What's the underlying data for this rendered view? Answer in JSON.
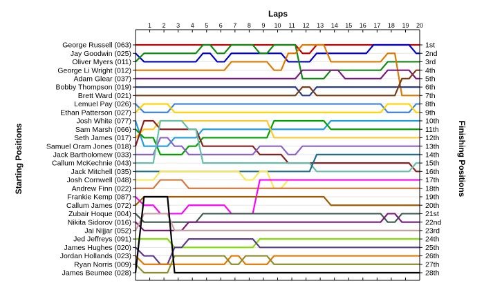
{
  "chart_data": {
    "type": "line",
    "title": "Laps",
    "left_axis_label": "Starting Positions",
    "right_axis_label": "Finishing Positions",
    "x": [
      1,
      2,
      3,
      4,
      5,
      6,
      7,
      8,
      9,
      10,
      11,
      12,
      13,
      14,
      15,
      16,
      17,
      18,
      19,
      20
    ],
    "x_ticks": [
      "1",
      "2",
      "3",
      "4",
      "5",
      "6",
      "7",
      "8",
      "9",
      "10",
      "11",
      "12",
      "13",
      "14",
      "15",
      "16",
      "17",
      "18",
      "19",
      "20"
    ],
    "starting_order": [
      "George Russell (063)",
      "Jay Goodwin (025)",
      "Oliver Myers (011)",
      "George Li Wright (012)",
      "Adam Glear (037)",
      "Bobby Thompson (019)",
      "Brett Ward (021)",
      "Lemuel Pay (026)",
      "Ethan Patterson (027)",
      "Josh White (077)",
      "Sam Marsh (066)",
      "Seth James (017)",
      "Samuel Oram Jones (018)",
      "Jack Bartholomew (033)",
      "Callum McKechnie (043)",
      "Jack Mitchell (035)",
      "Josh Cornwell (048)",
      "Andrew Finn (022)",
      "Frankie Kemp (087)",
      "Callum James (072)",
      "Zubair Hoque (004)",
      "Nikita Sidorov (016)",
      "Jai Nijjar (052)",
      "Jed Jeffreys (091)",
      "James Hughes (020)",
      "Jordan Hollands (023)",
      "Ryan Norris (009)",
      "James Beumee (028)"
    ],
    "finishing_positions": [
      "1st",
      "2nd",
      "3rd",
      "4th",
      "5th",
      "6th",
      "7th",
      "8th",
      "9th",
      "10th",
      "11th",
      "12th",
      "13th",
      "14th",
      "15th",
      "16th",
      "17th",
      "18th",
      "19th",
      "20th",
      "21st",
      "22nd",
      "23rd",
      "24th",
      "25th",
      "26th",
      "27th",
      "28th"
    ],
    "y_range": [
      1,
      28
    ],
    "series": [
      {
        "color": "#c00000",
        "positions": [
          1,
          1,
          1,
          1,
          1,
          1,
          1,
          1,
          1,
          1,
          1,
          1,
          2,
          1,
          1,
          1,
          1,
          1,
          1,
          1,
          1
        ]
      },
      {
        "color": "#0000c8",
        "positions": [
          2,
          3,
          3,
          3,
          3,
          2,
          3,
          2,
          2,
          2,
          2,
          3,
          3,
          2,
          2,
          2,
          2,
          1,
          1,
          1,
          2
        ]
      },
      {
        "color": "#108a10",
        "positions": [
          3,
          2,
          2,
          2,
          2,
          1,
          2,
          1,
          1,
          2,
          1,
          1,
          5,
          5,
          4,
          4,
          4,
          4,
          3,
          3,
          3
        ]
      },
      {
        "color": "#e07800",
        "positions": [
          4,
          4,
          4,
          4,
          4,
          4,
          4,
          3,
          3,
          3,
          4,
          2,
          1,
          1,
          3,
          3,
          3,
          3,
          2,
          7,
          7
        ]
      },
      {
        "color": "#7a1a7a",
        "positions": [
          5,
          5,
          5,
          5,
          5,
          5,
          5,
          5,
          5,
          5,
          5,
          5,
          4,
          4,
          4,
          5,
          5,
          5,
          4,
          4,
          5
        ]
      },
      {
        "color": "#283c8c",
        "positions": [
          6,
          6,
          6,
          6,
          6,
          6,
          6,
          6,
          6,
          6,
          6,
          6,
          7,
          6,
          6,
          6,
          6,
          6,
          6,
          6,
          6
        ]
      },
      {
        "color": "#7a3c14",
        "positions": [
          7,
          7,
          7,
          7,
          7,
          7,
          7,
          7,
          7,
          7,
          7,
          7,
          6,
          7,
          7,
          7,
          7,
          7,
          7,
          5,
          4
        ]
      },
      {
        "color": "#3c82d8",
        "positions": [
          8,
          9,
          9,
          8,
          8,
          8,
          8,
          8,
          8,
          8,
          8,
          8,
          8,
          8,
          8,
          8,
          8,
          8,
          9,
          9,
          8
        ]
      },
      {
        "color": "#ffd200",
        "positions": [
          9,
          8,
          8,
          9,
          9,
          9,
          9,
          9,
          9,
          9,
          9,
          9,
          9,
          9,
          9,
          9,
          9,
          9,
          8,
          8,
          9
        ]
      },
      {
        "color": "#1e9ee0",
        "positions": [
          10,
          13,
          13,
          12,
          12,
          11,
          11,
          11,
          11,
          11,
          11,
          11,
          11,
          11,
          10,
          10,
          10,
          10,
          10,
          10,
          10
        ]
      },
      {
        "color": "#00a000",
        "positions": [
          11,
          12,
          14,
          14,
          13,
          12,
          12,
          12,
          12,
          12,
          10,
          10,
          10,
          10,
          11,
          11,
          11,
          11,
          11,
          11,
          11
        ]
      },
      {
        "color": "#ffc828",
        "positions": [
          12,
          11,
          10,
          10,
          10,
          10,
          10,
          10,
          10,
          10,
          12,
          12,
          12,
          12,
          12,
          12,
          12,
          12,
          12,
          12,
          12
        ]
      },
      {
        "color": "#8c1e1e",
        "positions": [
          13,
          10,
          11,
          11,
          11,
          13,
          13,
          13,
          13,
          14,
          14,
          15,
          15,
          15,
          15,
          15,
          15,
          15,
          15,
          15,
          16
        ]
      },
      {
        "color": "#8c64c8",
        "positions": [
          14,
          14,
          12,
          13,
          14,
          14,
          14,
          14,
          14,
          13,
          13,
          14,
          13,
          13,
          13,
          13,
          13,
          13,
          13,
          13,
          13
        ]
      },
      {
        "color": "#64beaa",
        "positions": [
          15,
          15,
          10,
          10,
          11,
          15,
          15,
          15,
          15,
          15,
          15,
          15,
          15,
          16,
          16,
          16,
          16,
          16,
          16,
          16,
          15
        ]
      },
      {
        "color": "#1e6e8c",
        "positions": [
          16,
          16,
          16,
          16,
          16,
          16,
          16,
          16,
          16,
          16,
          16,
          16,
          16,
          14,
          14,
          14,
          14,
          14,
          14,
          14,
          14
        ]
      },
      {
        "color": "#ffe650",
        "positions": [
          17,
          17,
          16,
          16,
          16,
          16,
          16,
          16,
          17,
          16,
          18,
          17,
          17,
          17,
          17,
          17,
          17,
          17,
          17,
          17,
          17
        ]
      },
      {
        "color": "#d2783c",
        "positions": [
          18,
          18,
          17,
          17,
          18,
          18,
          18,
          18,
          18,
          18,
          18,
          18,
          18,
          18,
          18,
          18,
          18,
          18,
          18,
          18,
          18
        ]
      },
      {
        "color": "#ff00ff",
        "positions": [
          19,
          20,
          21,
          21,
          20,
          20,
          20,
          21,
          21,
          17,
          17,
          17,
          17,
          17,
          17,
          17,
          17,
          17,
          17,
          17,
          17
        ]
      },
      {
        "color": "#a05a00",
        "positions": [
          20,
          19,
          19,
          19,
          19,
          19,
          19,
          19,
          19,
          19,
          19,
          19,
          19,
          19,
          20,
          20,
          20,
          20,
          20,
          20,
          20
        ]
      },
      {
        "color": "#3c5a50",
        "positions": [
          21,
          22,
          22,
          22,
          22,
          21,
          21,
          21,
          21,
          21,
          21,
          21,
          21,
          21,
          21,
          21,
          21,
          21,
          22,
          21,
          21
        ]
      },
      {
        "color": "#7a1a7a",
        "positions": [
          22,
          23,
          23,
          23,
          22,
          22,
          22,
          22,
          22,
          22,
          22,
          22,
          22,
          22,
          22,
          22,
          22,
          22,
          21,
          22,
          22
        ]
      },
      {
        "color": "#c8a0a0",
        "positions": [
          23,
          21,
          21,
          23,
          23,
          23,
          23,
          23,
          23,
          23,
          23,
          23,
          23,
          23,
          23,
          23,
          23,
          23,
          23,
          23,
          23
        ]
      },
      {
        "color": "#80e000",
        "positions": [
          24,
          24,
          24,
          25,
          25,
          25,
          25,
          25,
          25,
          24,
          24,
          24,
          24,
          24,
          24,
          24,
          24,
          24,
          24,
          24,
          24
        ]
      },
      {
        "color": "#5a3c8c",
        "positions": [
          25,
          26,
          27,
          25,
          24,
          24,
          24,
          24,
          24,
          25,
          25,
          25,
          25,
          25,
          25,
          25,
          25,
          25,
          25,
          25,
          25
        ]
      },
      {
        "color": "#e07800",
        "positions": [
          26,
          27,
          27,
          27,
          27,
          27,
          27,
          26,
          27,
          27,
          26,
          26,
          26,
          26,
          26,
          26,
          26,
          26,
          26,
          26,
          26
        ]
      },
      {
        "color": "#8c8c28",
        "positions": [
          27,
          28,
          28,
          26,
          26,
          26,
          26,
          27,
          26,
          26,
          27,
          27,
          27,
          27,
          27,
          27,
          27,
          27,
          27,
          27,
          27
        ]
      },
      {
        "color": "#000000",
        "positions": [
          28,
          19,
          19,
          28,
          28,
          28,
          28,
          28,
          28,
          28,
          28,
          28,
          28,
          28,
          28,
          28,
          28,
          28,
          28,
          28,
          28
        ]
      }
    ]
  }
}
